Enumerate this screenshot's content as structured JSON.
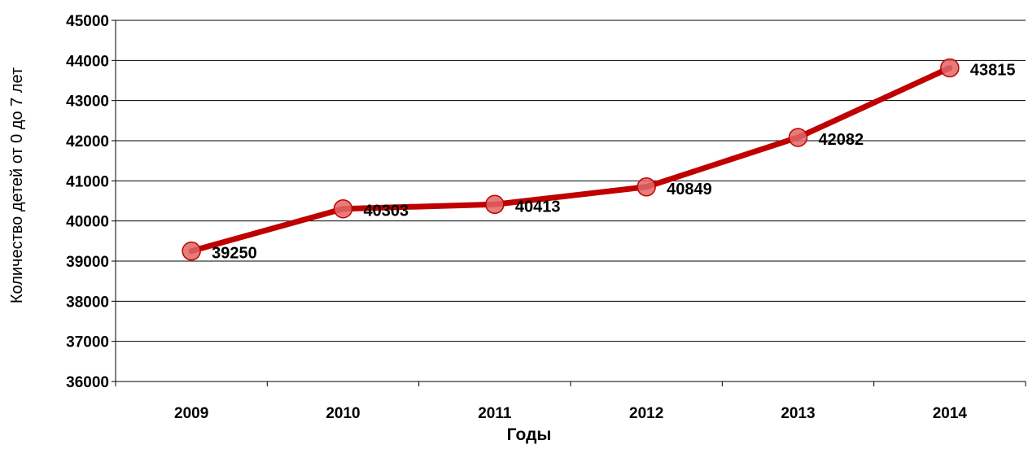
{
  "chart_data": {
    "type": "line",
    "title": "",
    "xlabel": "Годы",
    "ylabel": "Количество детей от 0 до 7 лет",
    "categories": [
      "2009",
      "2010",
      "2011",
      "2012",
      "2013",
      "2014"
    ],
    "series": [
      {
        "values": [
          39250,
          40303,
          40413,
          40849,
          42082,
          43815
        ],
        "color": "#C00000",
        "marker_color": "#E06666"
      }
    ],
    "ylim": [
      36000,
      45000
    ],
    "y_ticks": [
      "36000",
      "37000",
      "38000",
      "39000",
      "40000",
      "41000",
      "42000",
      "43000",
      "44000",
      "45000"
    ],
    "data_labels": [
      "39250",
      "40303",
      "40413",
      "40849",
      "42082",
      "43815"
    ],
    "grid": true,
    "legend": "none"
  }
}
